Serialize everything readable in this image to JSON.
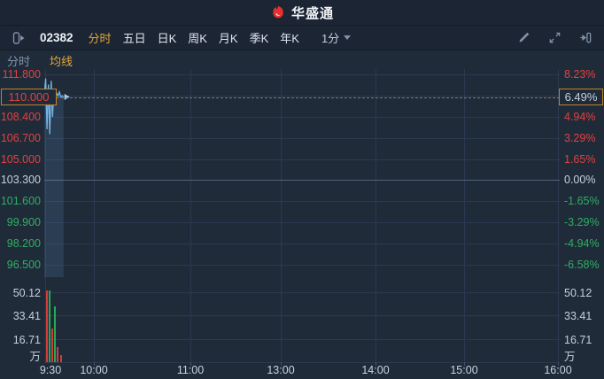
{
  "brand": {
    "logo_text": "华盛通"
  },
  "toolbar": {
    "stock_code": "02382",
    "tabs": [
      {
        "label": "分时",
        "active": true
      },
      {
        "label": "五日",
        "active": false
      },
      {
        "label": "日K",
        "active": false
      },
      {
        "label": "周K",
        "active": false
      },
      {
        "label": "月K",
        "active": false
      },
      {
        "label": "季K",
        "active": false
      },
      {
        "label": "年K",
        "active": false
      }
    ],
    "period": {
      "label": "1分"
    }
  },
  "legend": {
    "items": [
      {
        "label": "分时",
        "tone": "muted"
      },
      {
        "label": "均线",
        "tone": "gold"
      }
    ]
  },
  "chart_data": {
    "type": "line",
    "title": "02382 intraday (分时) chart",
    "price_axis": [
      {
        "label": "111.800",
        "tone": "up"
      },
      {
        "label": "110.000",
        "tone": "up",
        "boxed": true
      },
      {
        "label": "108.400",
        "tone": "up"
      },
      {
        "label": "106.700",
        "tone": "up"
      },
      {
        "label": "105.000",
        "tone": "up"
      },
      {
        "label": "103.300",
        "tone": "flat"
      },
      {
        "label": "101.600",
        "tone": "down"
      },
      {
        "label": "99.900",
        "tone": "down"
      },
      {
        "label": "98.200",
        "tone": "down"
      },
      {
        "label": "96.500",
        "tone": "down"
      }
    ],
    "percent_axis": [
      {
        "label": "8.23%",
        "tone": "up"
      },
      {
        "label": "6.49%",
        "tone": "flat",
        "boxed": true
      },
      {
        "label": "4.94%",
        "tone": "up"
      },
      {
        "label": "3.29%",
        "tone": "up"
      },
      {
        "label": "1.65%",
        "tone": "up"
      },
      {
        "label": "0.00%",
        "tone": "flat"
      },
      {
        "label": "-1.65%",
        "tone": "down"
      },
      {
        "label": "-3.29%",
        "tone": "down"
      },
      {
        "label": "-4.94%",
        "tone": "down"
      },
      {
        "label": "-6.58%",
        "tone": "down"
      }
    ],
    "current": {
      "price": "110.000",
      "percent": "6.49%",
      "value": 110.0
    },
    "prev_close": 103.3,
    "pct_per_grid": 1.65,
    "time_ticks": [
      "9:30",
      "10:00",
      "11:00",
      "13:00",
      "14:00",
      "15:00",
      "16:00"
    ],
    "price_line": {
      "minutes": [
        0,
        1,
        2,
        3,
        4,
        5,
        6,
        7,
        8,
        9,
        10,
        11,
        12,
        13,
        14
      ],
      "prices": [
        110.2,
        111.5,
        107.4,
        111.0,
        107.0,
        111.3,
        108.4,
        110.6,
        109.9,
        110.3,
        110.1,
        110.4,
        110.0,
        110.1,
        110.0
      ]
    },
    "volume": {
      "unit": "万",
      "ticks": [
        "50.12",
        "33.41",
        "16.71"
      ],
      "tick_values": [
        50.12,
        33.41,
        16.71
      ],
      "bars": [
        {
          "value": 51.0,
          "color": "red"
        },
        {
          "value": 51.5,
          "color": "green"
        },
        {
          "value": 24.0,
          "color": "red"
        },
        {
          "value": 40.0,
          "color": "green"
        },
        {
          "value": 11.0,
          "color": "red"
        },
        {
          "value": 5.0,
          "color": "red"
        }
      ]
    }
  },
  "colors": {
    "up": "#e0413f",
    "down": "#2fae62",
    "flat": "#c6cfdd",
    "accent_gold": "#dfa63e",
    "line_blue": "#74b4e8",
    "area_blue": "rgba(116,180,232,0.14)",
    "box_border": "#c0822f",
    "dashed_line": "#8d7553",
    "brand_red": "#e6302e"
  }
}
